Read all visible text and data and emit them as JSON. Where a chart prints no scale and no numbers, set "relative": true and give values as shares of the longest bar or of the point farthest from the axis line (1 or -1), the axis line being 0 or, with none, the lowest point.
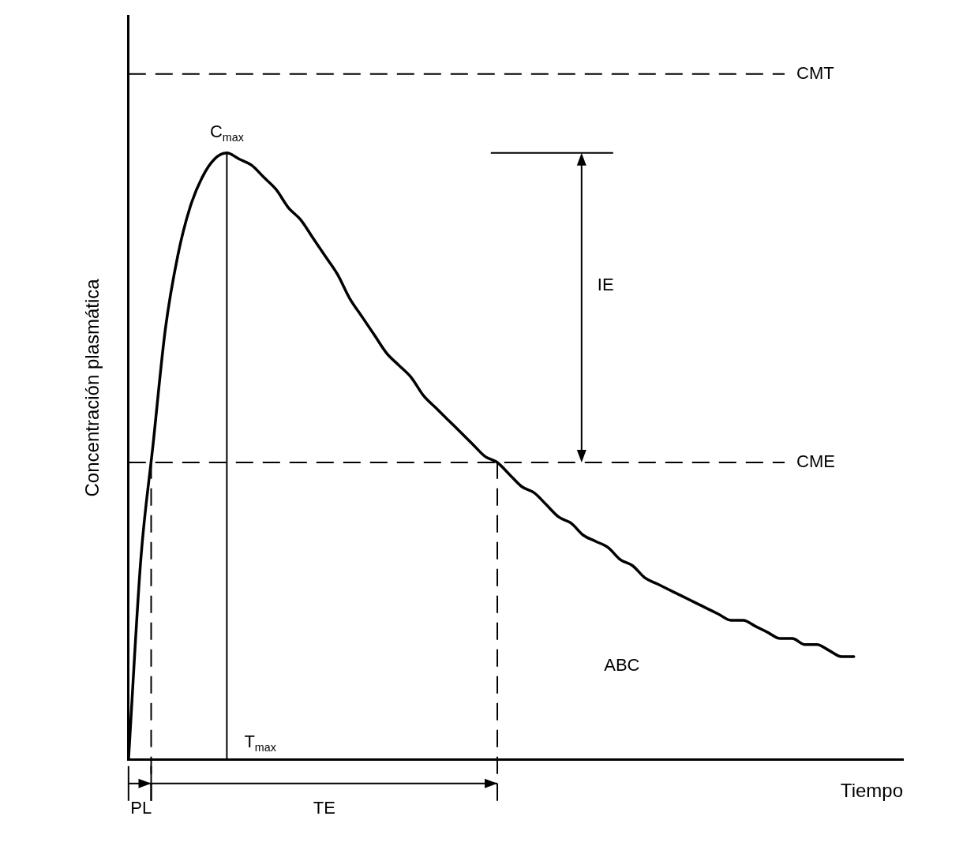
{
  "chart_data": {
    "type": "line",
    "relative": true,
    "xlabel": "Tiempo",
    "ylabel": "Concentración plasmática",
    "marker": "none",
    "categories": [
      null,
      null,
      null,
      null,
      null,
      null,
      null,
      null,
      null,
      null,
      null,
      null,
      null,
      null,
      null,
      null,
      null,
      null,
      null,
      null,
      null,
      null,
      null,
      null,
      null,
      null,
      null,
      null,
      null,
      null,
      null,
      null,
      null,
      null,
      null,
      null,
      null,
      null,
      null,
      null,
      null,
      null,
      null,
      null,
      null,
      null,
      null,
      null,
      null,
      null,
      null,
      null,
      null,
      null,
      null,
      null,
      null,
      null,
      null,
      null,
      null,
      null,
      null,
      null
    ],
    "series": [
      {
        "color": "#000000",
        "values": [
          0,
          0.33,
          0.52,
          0.71,
          0.83,
          0.91,
          0.96,
          0.99,
          1,
          0.99,
          0.98,
          0.96,
          0.94,
          0.91,
          0.89,
          0.86,
          0.83,
          0.8,
          0.76,
          0.73,
          0.7,
          0.67,
          0.65,
          0.63,
          0.6,
          0.58,
          0.56,
          0.54,
          0.52,
          0.5,
          0.49,
          0.47,
          0.45,
          0.44,
          0.42,
          0.4,
          0.39,
          0.37,
          0.36,
          0.35,
          0.33,
          0.32,
          0.3,
          0.29,
          0.28,
          0.27,
          0.26,
          0.25,
          0.24,
          0.23,
          0.23,
          0.22,
          0.21,
          0.2,
          0.2,
          0.19,
          0.19,
          0.18,
          0.17,
          0.17,
          null,
          null,
          null,
          null
        ]
      }
    ],
    "ref_lines": [
      {
        "axis": "y",
        "value": 1.13,
        "label": "CMT",
        "line_style": "dashed"
      },
      {
        "axis": "y",
        "value": 0.49,
        "label": "CME",
        "line_style": "dashed"
      }
    ],
    "annotations": [
      {
        "text": "C$_{max}$",
        "y": 1
      },
      "T$_{max}$",
      "IE",
      "ABC",
      "PL",
      "TE"
    ]
  }
}
